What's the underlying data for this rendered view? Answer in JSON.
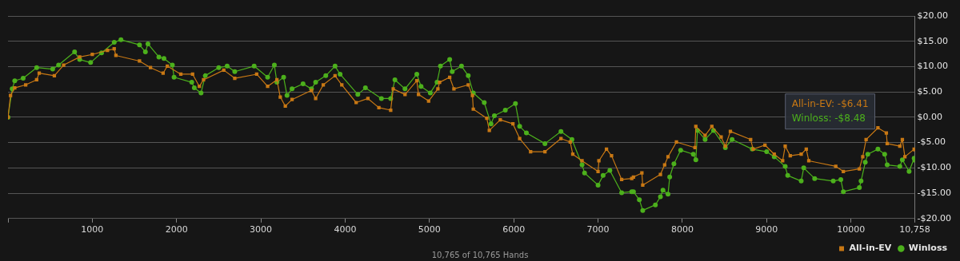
{
  "chart_data": {
    "type": "line",
    "xlabel": "10,765 of 10,765 Hands",
    "legend": "bottom right",
    "grid": "y",
    "line_style": "solid",
    "annotations": [
      "All-in-EV: -$6.41",
      "Winloss: -$8.48"
    ],
    "xlim": [
      0,
      10758
    ],
    "xticks": [
      {
        "value": 0,
        "label": null
      },
      1000,
      2000,
      3000,
      4000,
      5000,
      6000,
      7000,
      8000,
      9000,
      10000,
      {
        "value": 10758,
        "label": "10,758"
      }
    ],
    "ylim": [
      -20,
      20
    ],
    "yticks": [
      {
        "value": -20,
        "label": "-$20.00"
      },
      {
        "value": -15,
        "label": "-$15.00"
      },
      {
        "value": -10,
        "label": "-$10.00"
      },
      {
        "value": -5,
        "label": "-$5.00"
      },
      {
        "value": 0,
        "label": "$0.00"
      },
      {
        "value": 5,
        "label": "$5.00"
      },
      {
        "value": 10,
        "label": "$10.00"
      },
      {
        "value": 15,
        "label": "$15.00"
      },
      {
        "value": 20,
        "label": "$20.00"
      }
    ],
    "series": [
      {
        "name": "All-in-EV",
        "color": "#c87814",
        "marker": "square",
        "x": [
          0,
          30,
          80,
          210,
          340,
          370,
          550,
          660,
          850,
          1000,
          1180,
          1260,
          1280,
          1560,
          1690,
          1840,
          1890,
          2050,
          2190,
          2270,
          2320,
          2560,
          2690,
          2950,
          3080,
          3190,
          3230,
          3290,
          3370,
          3600,
          3650,
          3740,
          3880,
          3960,
          4130,
          4270,
          4400,
          4540,
          4570,
          4710,
          4850,
          4870,
          4990,
          5100,
          5120,
          5240,
          5290,
          5460,
          5510,
          5520,
          5680,
          5710,
          5840,
          5990,
          6070,
          6200,
          6370,
          6560,
          6670,
          6700,
          6810,
          7000,
          7010,
          7100,
          7160,
          7280,
          7400,
          7420,
          7520,
          7530,
          7740,
          7790,
          7830,
          7930,
          8150,
          8160,
          8270,
          8350,
          8460,
          8510,
          8570,
          8810,
          8840,
          8980,
          9090,
          9190,
          9220,
          9280,
          9410,
          9470,
          9500,
          9820,
          9910,
          10100,
          10140,
          10180,
          10320,
          10420,
          10430,
          10580,
          10610,
          10640,
          10750,
          10758
        ],
        "values": [
          0,
          4.3,
          5.8,
          6.4,
          7.4,
          8.7,
          8.2,
          10.3,
          11.9,
          12.4,
          13.2,
          13.5,
          12.2,
          11.1,
          9.8,
          8.7,
          10.1,
          8.5,
          8.5,
          6.1,
          7.4,
          9.3,
          7.7,
          8.5,
          6.1,
          7.4,
          4.0,
          2.2,
          3.5,
          5.3,
          3.7,
          6.4,
          8.2,
          6.4,
          2.9,
          3.7,
          1.9,
          1.4,
          5.6,
          4.5,
          7.2,
          4.5,
          3.2,
          5.6,
          6.9,
          7.9,
          5.6,
          6.4,
          4.3,
          1.6,
          -0.2,
          -2.6,
          -0.5,
          -1.3,
          -4.2,
          -6.8,
          -6.8,
          -4.2,
          -4.9,
          -7.3,
          -8.6,
          -10.7,
          -8.6,
          -6.3,
          -7.6,
          -12.3,
          -12.1,
          -11.8,
          -11.0,
          -13.4,
          -11.3,
          -9.4,
          -7.8,
          -4.9,
          -6.0,
          -1.8,
          -3.6,
          -1.8,
          -3.9,
          -5.7,
          -2.8,
          -4.4,
          -6.3,
          -5.5,
          -7.3,
          -8.6,
          -5.7,
          -7.6,
          -7.3,
          -6.3,
          -8.6,
          -9.7,
          -10.7,
          -10.2,
          -7.8,
          -4.4,
          -2.1,
          -3.1,
          -5.2,
          -5.7,
          -4.4,
          -7.8,
          -6.3,
          -6.41
        ]
      },
      {
        "name": "Winloss",
        "color": "#4cb01c",
        "marker": "circle",
        "x": [
          0,
          50,
          80,
          180,
          340,
          530,
          600,
          790,
          850,
          980,
          1110,
          1260,
          1340,
          1560,
          1630,
          1660,
          1790,
          1850,
          1950,
          1970,
          2180,
          2210,
          2290,
          2340,
          2500,
          2600,
          2690,
          2920,
          3080,
          3160,
          3190,
          3270,
          3310,
          3370,
          3500,
          3600,
          3650,
          3770,
          3880,
          3940,
          4150,
          4240,
          4430,
          4540,
          4590,
          4710,
          4850,
          4900,
          5010,
          5090,
          5130,
          5240,
          5270,
          5380,
          5460,
          5520,
          5650,
          5730,
          5770,
          5900,
          6020,
          6070,
          6150,
          6370,
          6560,
          6690,
          6810,
          6840,
          7000,
          7060,
          7140,
          7280,
          7400,
          7420,
          7490,
          7530,
          7680,
          7740,
          7770,
          7830,
          7850,
          7900,
          7980,
          8130,
          8160,
          8180,
          8270,
          8370,
          8510,
          8590,
          8830,
          9000,
          9090,
          9220,
          9250,
          9410,
          9440,
          9570,
          9790,
          9880,
          9910,
          10100,
          10120,
          10170,
          10200,
          10320,
          10400,
          10430,
          10580,
          10610,
          10690,
          10750,
          10758
        ],
        "values": [
          0,
          5.6,
          7.2,
          7.7,
          9.8,
          9.5,
          10.3,
          12.9,
          11.4,
          10.8,
          12.7,
          14.8,
          15.3,
          14.3,
          12.9,
          14.5,
          11.9,
          11.6,
          10.3,
          7.9,
          6.9,
          5.8,
          4.8,
          8.2,
          9.8,
          10.1,
          9.0,
          10.1,
          7.9,
          10.3,
          6.9,
          7.9,
          4.3,
          5.6,
          6.6,
          5.6,
          6.9,
          8.2,
          10.1,
          8.5,
          4.5,
          5.8,
          3.7,
          3.7,
          7.4,
          5.6,
          8.5,
          6.1,
          4.8,
          6.9,
          10.1,
          11.4,
          9.0,
          10.1,
          8.2,
          4.8,
          2.9,
          -1.3,
          0.3,
          1.4,
          2.7,
          -1.8,
          -3.1,
          -5.2,
          -2.8,
          -4.4,
          -9.4,
          -11.0,
          -13.4,
          -11.5,
          -10.5,
          -14.9,
          -14.7,
          -14.7,
          -16.3,
          -18.4,
          -17.3,
          -15.7,
          -14.4,
          -15.2,
          -11.8,
          -9.2,
          -6.5,
          -7.3,
          -8.4,
          -2.6,
          -4.4,
          -2.6,
          -6.0,
          -4.4,
          -6.3,
          -6.8,
          -7.8,
          -9.7,
          -11.5,
          -12.6,
          -10.0,
          -12.1,
          -12.6,
          -12.3,
          -14.7,
          -13.9,
          -12.6,
          -8.9,
          -7.3,
          -6.3,
          -7.3,
          -9.4,
          -9.7,
          -8.4,
          -10.7,
          -8.1,
          -8.48
        ]
      }
    ]
  }
}
